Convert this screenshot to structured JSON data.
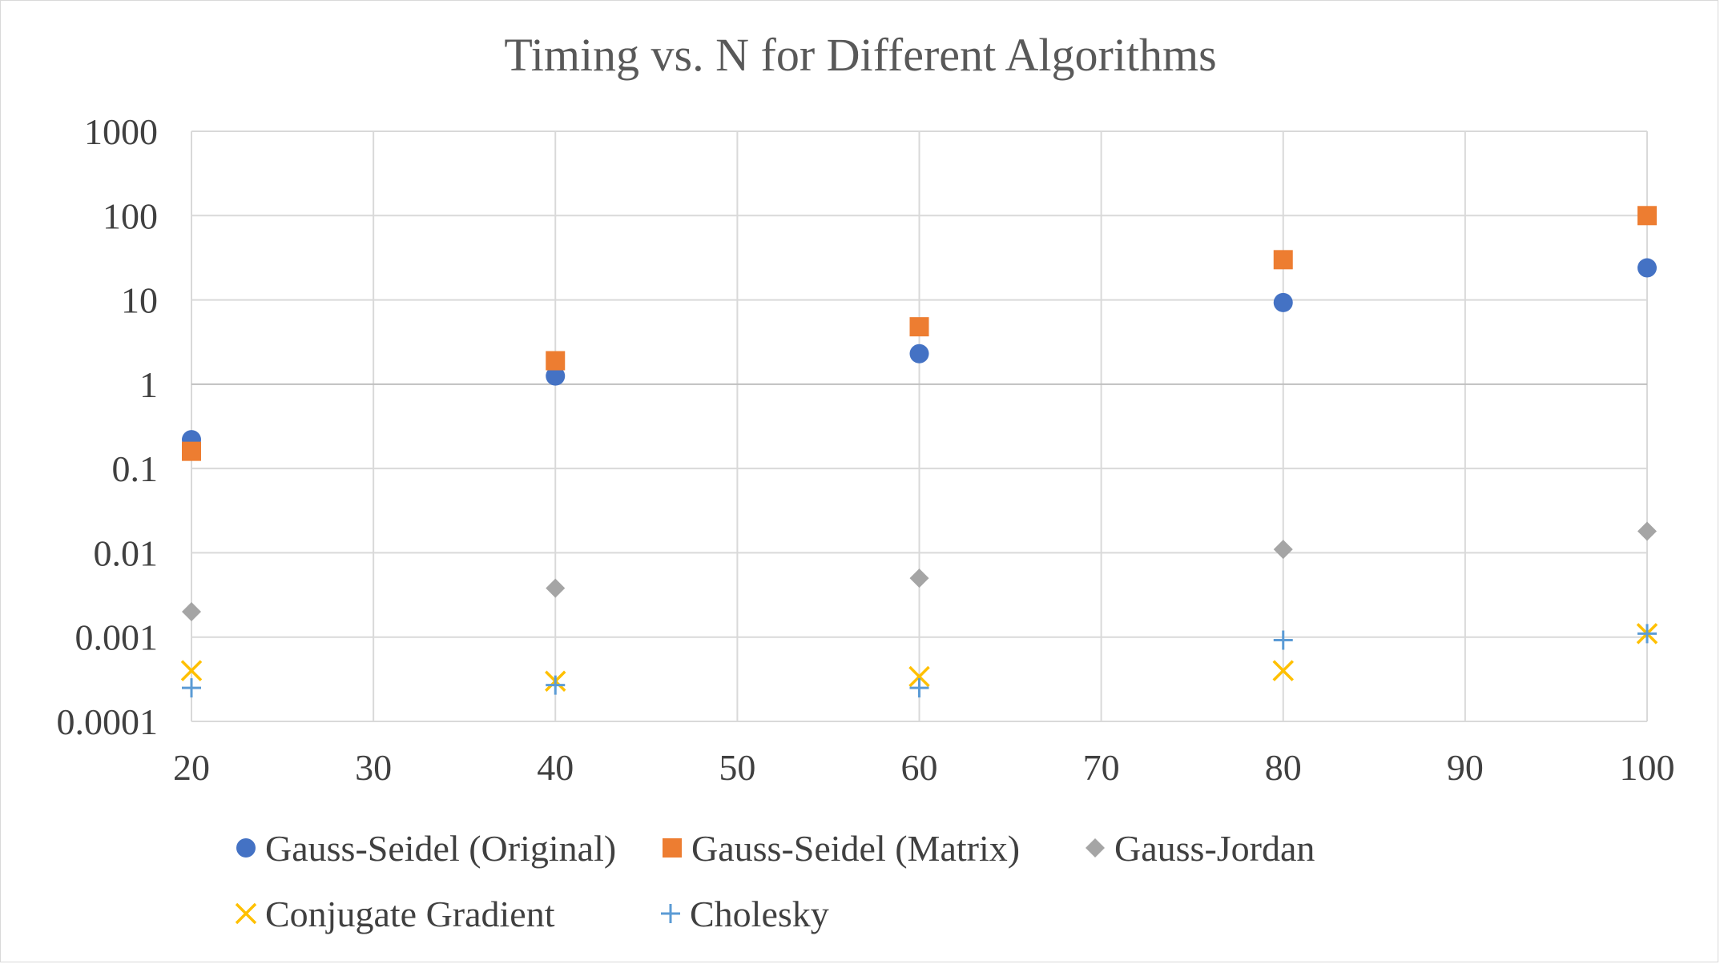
{
  "chart_data": {
    "type": "scatter",
    "title": "Timing vs. N for Different Algorithms",
    "xlabel": "",
    "ylabel": "",
    "x_scale": "linear",
    "y_scale": "log",
    "xlim": [
      20,
      100
    ],
    "ylim": [
      0.0001,
      1000
    ],
    "x_ticks": [
      20,
      30,
      40,
      50,
      60,
      70,
      80,
      90,
      100
    ],
    "y_ticks": [
      "1000",
      "100",
      "10",
      "1",
      "0.1",
      "0.01",
      "0.001",
      "0.0001"
    ],
    "y_tick_values": [
      1000,
      100,
      10,
      1,
      0.1,
      0.01,
      0.001,
      0.0001
    ],
    "grid": true,
    "legend_position": "bottom",
    "series": [
      {
        "name": "Gauss-Seidel (Original)",
        "marker": "circle",
        "color": "#4472c4",
        "x": [
          20,
          40,
          60,
          80,
          100
        ],
        "y": [
          0.22,
          1.25,
          2.3,
          9.3,
          24
        ]
      },
      {
        "name": "Gauss-Seidel (Matrix)",
        "marker": "square",
        "color": "#ed7d31",
        "x": [
          20,
          40,
          60,
          80,
          100
        ],
        "y": [
          0.16,
          1.9,
          4.8,
          30,
          100
        ]
      },
      {
        "name": "Gauss-Jordan",
        "marker": "diamond",
        "color": "#a5a5a5",
        "x": [
          20,
          40,
          60,
          80,
          100
        ],
        "y": [
          0.002,
          0.0038,
          0.005,
          0.011,
          0.018
        ]
      },
      {
        "name": "Conjugate Gradient",
        "marker": "x",
        "color": "#ffc000",
        "x": [
          20,
          40,
          60,
          80,
          100
        ],
        "y": [
          0.0004,
          0.0003,
          0.00034,
          0.0004,
          0.0011
        ]
      },
      {
        "name": "Cholesky",
        "marker": "plus",
        "color": "#5b9bd5",
        "x": [
          20,
          40,
          60,
          80,
          100
        ],
        "y": [
          0.00025,
          0.00027,
          0.00025,
          0.00092,
          0.0011
        ]
      }
    ]
  }
}
